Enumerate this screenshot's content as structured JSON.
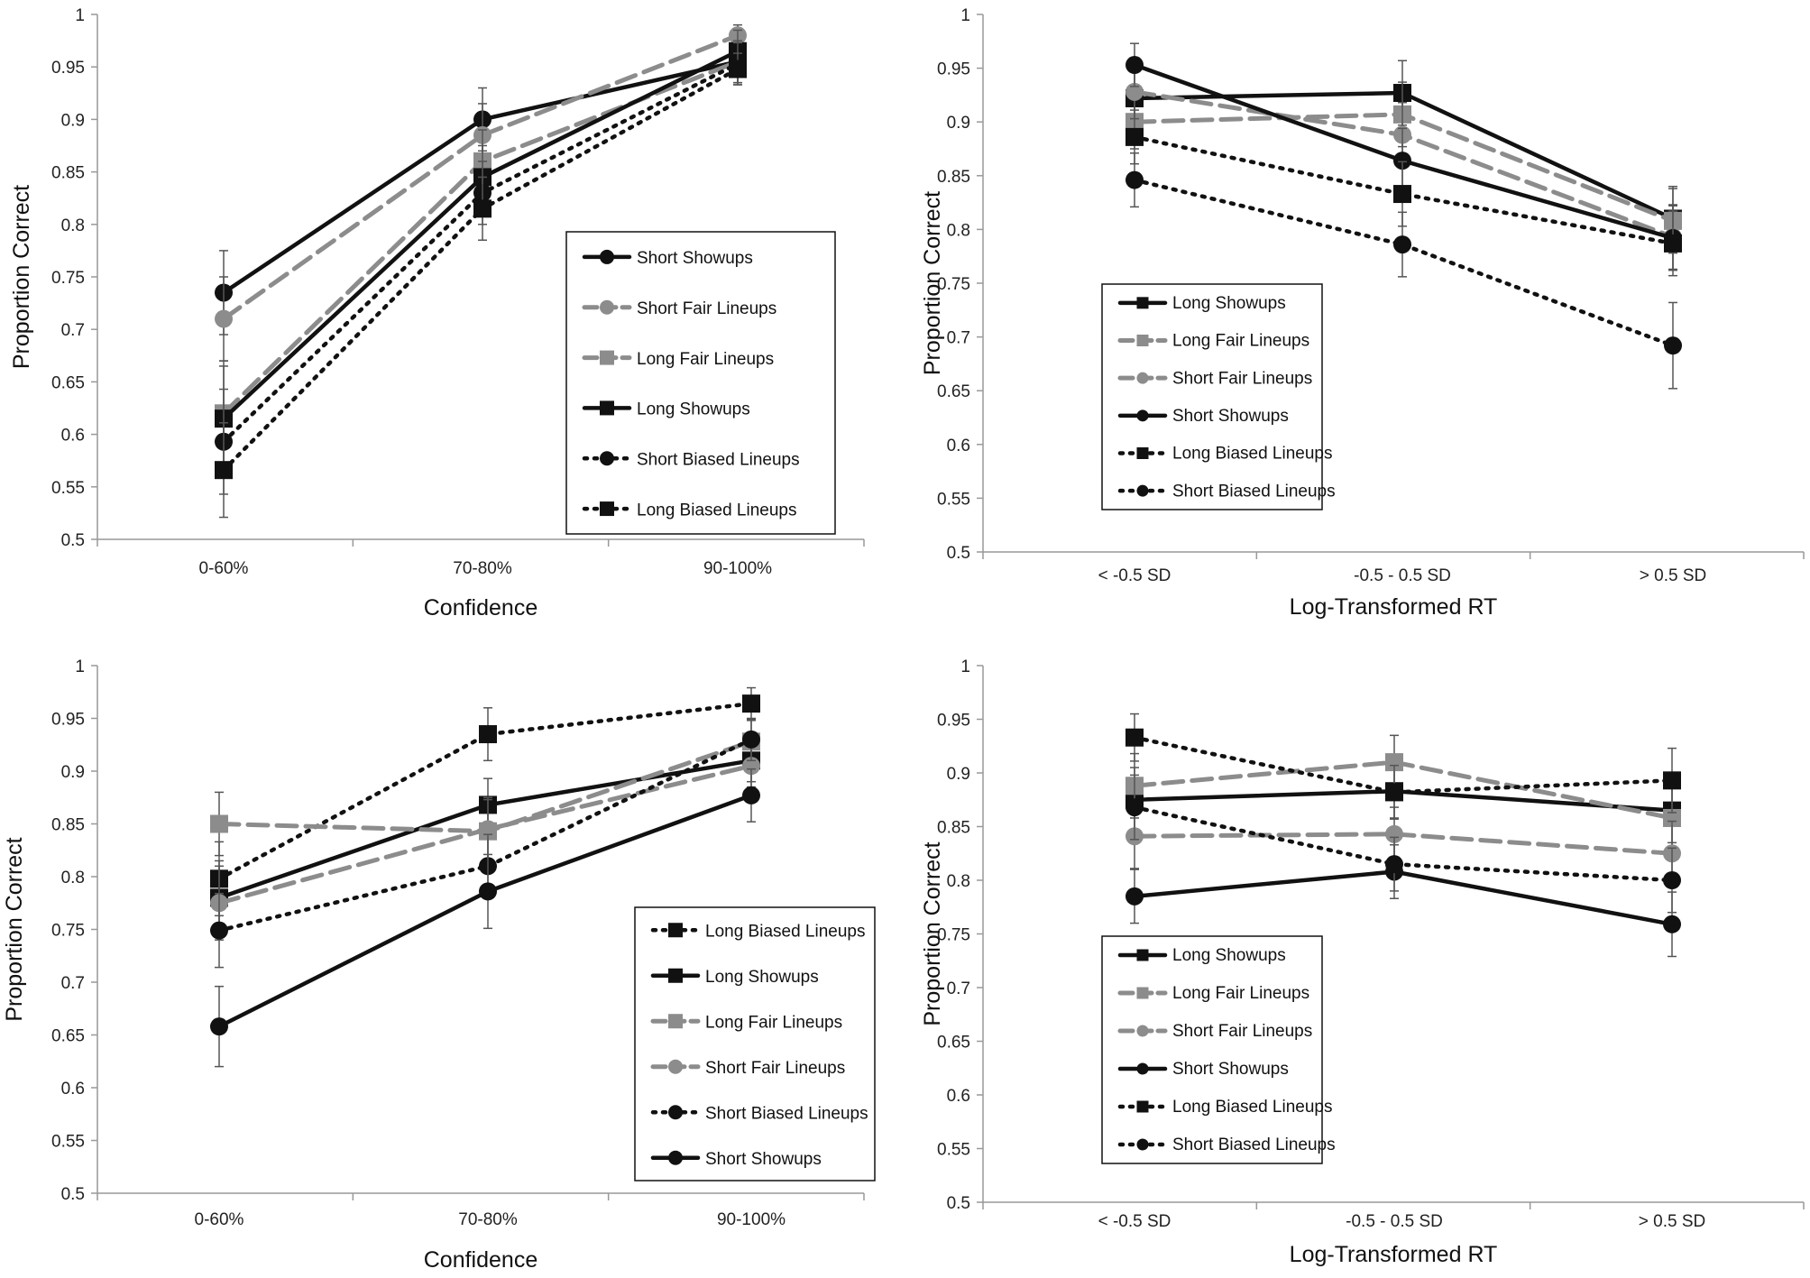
{
  "chart_data": [
    {
      "type": "line",
      "panel": "top-left",
      "xlabel": "Confidence",
      "ylabel": "Proportion Correct",
      "categories": [
        "0-60%",
        "70-80%",
        "90-100%"
      ],
      "ylim": [
        0.5,
        1
      ],
      "yticks": [
        "0.5",
        "0.55",
        "0.6",
        "0.65",
        "0.7",
        "0.75",
        "0.8",
        "0.85",
        "0.9",
        "0.95",
        "1"
      ],
      "legend_position": "lower-right",
      "series": [
        {
          "name": "Short Showups",
          "style": "solid-dark",
          "marker": "circle",
          "values": [
            0.735,
            0.9,
            0.955
          ],
          "errors": [
            0.04,
            0.03,
            0.02
          ]
        },
        {
          "name": "Short Fair Lineups",
          "style": "dashed-gray",
          "marker": "circle",
          "values": [
            0.71,
            0.885,
            0.98
          ],
          "errors": [
            0.04,
            0.03,
            0.01
          ]
        },
        {
          "name": "Long Fair Lineups",
          "style": "dashed-gray",
          "marker": "square",
          "values": [
            0.62,
            0.86,
            0.955
          ],
          "errors": [
            0.05,
            0.03,
            0.02
          ]
        },
        {
          "name": "Long Showups",
          "style": "solid-dark",
          "marker": "square",
          "values": [
            0.615,
            0.845,
            0.965
          ],
          "errors": [
            0.05,
            0.03,
            0.02
          ]
        },
        {
          "name": "Short Biased Lineups",
          "style": "dotted-dark",
          "marker": "circle",
          "values": [
            0.593,
            0.83,
            0.953
          ],
          "errors": [
            0.05,
            0.03,
            0.02
          ]
        },
        {
          "name": "Long Biased Lineups",
          "style": "dotted-dark",
          "marker": "square",
          "values": [
            0.566,
            0.815,
            0.948
          ],
          "errors": [
            0.045,
            0.03,
            0.015
          ]
        }
      ]
    },
    {
      "type": "line",
      "panel": "top-right",
      "xlabel": "Log-Transformed RT",
      "ylabel": "Proportion Correct",
      "categories": [
        "< -0.5 SD",
        "-0.5 - 0.5 SD",
        "> 0.5 SD"
      ],
      "ylim": [
        0.5,
        1
      ],
      "yticks": [
        "0.5",
        "0.55",
        "0.6",
        "0.65",
        "0.7",
        "0.75",
        "0.8",
        "0.85",
        "0.9",
        "0.95",
        "1"
      ],
      "legend_position": "lower-left",
      "series": [
        {
          "name": "Long Showups",
          "style": "solid-dark",
          "marker": "square",
          "values": [
            0.922,
            0.927,
            0.81
          ],
          "errors": [
            0.03,
            0.03,
            0.03
          ]
        },
        {
          "name": "Long Fair Lineups",
          "style": "dashed-gray",
          "marker": "square",
          "values": [
            0.9,
            0.907,
            0.808
          ],
          "errors": [
            0.025,
            0.03,
            0.03
          ]
        },
        {
          "name": "Short Fair Lineups",
          "style": "dashed-gray",
          "marker": "circle",
          "values": [
            0.928,
            0.888,
            0.793
          ],
          "errors": [
            0.025,
            0.03,
            0.03
          ]
        },
        {
          "name": "Short Showups",
          "style": "solid-dark",
          "marker": "circle",
          "values": [
            0.953,
            0.864,
            0.792
          ],
          "errors": [
            0.02,
            0.03,
            0.03
          ]
        },
        {
          "name": "Long Biased Lineups",
          "style": "dotted-dark",
          "marker": "square",
          "values": [
            0.886,
            0.833,
            0.787
          ],
          "errors": [
            0.025,
            0.03,
            0.03
          ]
        },
        {
          "name": "Short Biased Lineups",
          "style": "dotted-dark",
          "marker": "circle",
          "values": [
            0.846,
            0.786,
            0.692
          ],
          "errors": [
            0.025,
            0.03,
            0.04
          ]
        }
      ]
    },
    {
      "type": "line",
      "panel": "bottom-left",
      "xlabel": "Confidence",
      "ylabel": "Proportion Correct",
      "categories": [
        "0-60%",
        "70-80%",
        "90-100%"
      ],
      "ylim": [
        0.5,
        1
      ],
      "yticks": [
        "0.5",
        "0.55",
        "0.6",
        "0.65",
        "0.7",
        "0.75",
        "0.8",
        "0.85",
        "0.9",
        "0.95",
        "1"
      ],
      "legend_position": "lower-right",
      "series": [
        {
          "name": "Long Biased Lineups",
          "style": "dotted-dark",
          "marker": "square",
          "values": [
            0.798,
            0.935,
            0.964
          ],
          "errors": [
            0.035,
            0.025,
            0.015
          ]
        },
        {
          "name": "Long Showups",
          "style": "solid-dark",
          "marker": "square",
          "values": [
            0.78,
            0.868,
            0.91
          ],
          "errors": [
            0.035,
            0.025,
            0.02
          ]
        },
        {
          "name": "Long Fair Lineups",
          "style": "dashed-gray",
          "marker": "square",
          "values": [
            0.85,
            0.843,
            0.928
          ],
          "errors": [
            0.03,
            0.03,
            0.02
          ]
        },
        {
          "name": "Short Fair Lineups",
          "style": "dashed-gray",
          "marker": "circle",
          "values": [
            0.775,
            0.845,
            0.905
          ],
          "errors": [
            0.035,
            0.03,
            0.02
          ]
        },
        {
          "name": "Short Biased Lineups",
          "style": "dotted-dark",
          "marker": "circle",
          "values": [
            0.749,
            0.81,
            0.93
          ],
          "errors": [
            0.035,
            0.03,
            0.02
          ]
        },
        {
          "name": "Short Showups",
          "style": "solid-dark",
          "marker": "circle",
          "values": [
            0.658,
            0.786,
            0.877
          ],
          "errors": [
            0.038,
            0.035,
            0.025
          ]
        }
      ]
    },
    {
      "type": "line",
      "panel": "bottom-right",
      "xlabel": "Log-Transformed RT",
      "ylabel": "Proportion Correct",
      "categories": [
        "< -0.5 SD",
        "-0.5 - 0.5 SD",
        "> 0.5 SD"
      ],
      "ylim": [
        0.5,
        1
      ],
      "yticks": [
        "0.5",
        "0.55",
        "0.6",
        "0.65",
        "0.7",
        "0.75",
        "0.8",
        "0.85",
        "0.9",
        "0.95",
        "1"
      ],
      "legend_position": "lower-left",
      "series": [
        {
          "name": "Long Showups",
          "style": "solid-dark",
          "marker": "square",
          "values": [
            0.875,
            0.883,
            0.865
          ],
          "errors": [
            0.03,
            0.025,
            0.03
          ]
        },
        {
          "name": "Long Fair Lineups",
          "style": "dashed-gray",
          "marker": "square",
          "values": [
            0.888,
            0.91,
            0.858
          ],
          "errors": [
            0.03,
            0.025,
            0.03
          ]
        },
        {
          "name": "Short Fair Lineups",
          "style": "dashed-gray",
          "marker": "circle",
          "values": [
            0.841,
            0.843,
            0.825
          ],
          "errors": [
            0.03,
            0.025,
            0.03
          ]
        },
        {
          "name": "Short Showups",
          "style": "solid-dark",
          "marker": "circle",
          "values": [
            0.785,
            0.808,
            0.759
          ],
          "errors": [
            0.025,
            0.025,
            0.03
          ]
        },
        {
          "name": "Long Biased Lineups",
          "style": "dotted-dark",
          "marker": "square",
          "values": [
            0.933,
            0.882,
            0.893
          ],
          "errors": [
            0.022,
            0.025,
            0.03
          ]
        },
        {
          "name": "Short Biased Lineups",
          "style": "dotted-dark",
          "marker": "circle",
          "values": [
            0.868,
            0.815,
            0.8
          ],
          "errors": [
            0.03,
            0.025,
            0.03
          ]
        }
      ]
    }
  ],
  "colors": {
    "dark": "#111111",
    "gray": "#8c8c8c",
    "axis": "#999999",
    "background": "#ffffff"
  }
}
